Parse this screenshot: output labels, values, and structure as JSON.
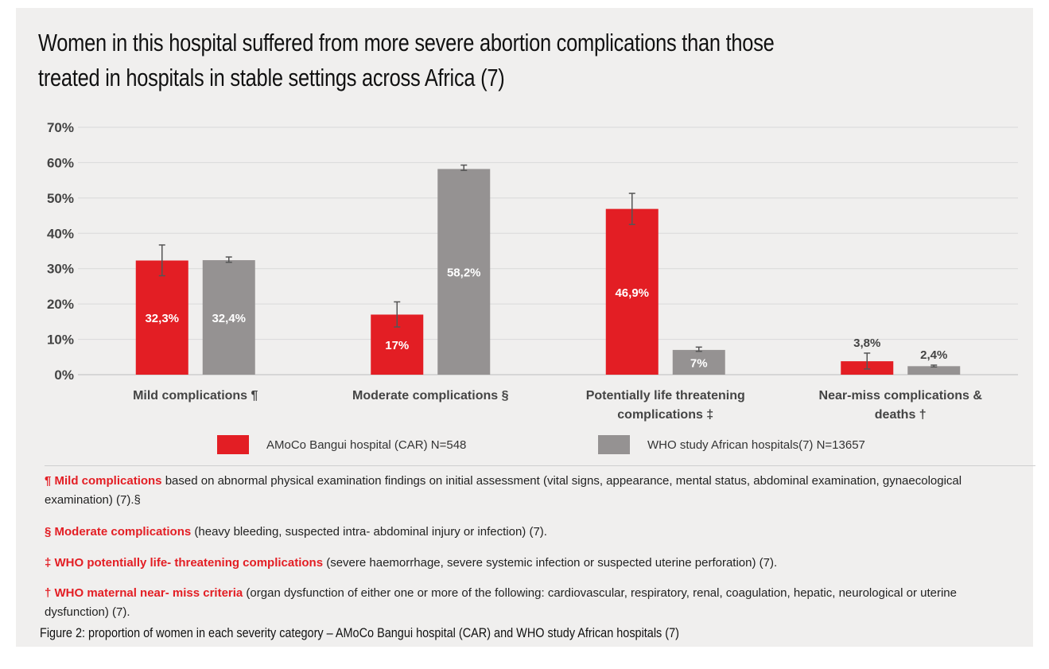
{
  "title": "Women in this hospital suffered from more severe abortion complications than those treated in hospitals in stable settings across Africa (7)",
  "chart_data": {
    "type": "bar",
    "categories": [
      [
        "Mild complications ¶"
      ],
      [
        "Moderate complications §"
      ],
      [
        "Potentially life threatening",
        "complications ‡"
      ],
      [
        "Near-miss complications &",
        "deaths †"
      ]
    ],
    "series": [
      {
        "name": "AMoCo Bangui hospital (CAR) N=548",
        "color": "#e31e24",
        "values": [
          32.3,
          17,
          46.9,
          3.8
        ],
        "labels": [
          "32,3%",
          "17%",
          "46,9%",
          "3,8%"
        ],
        "err_low": [
          28,
          13.5,
          42.5,
          1.6
        ],
        "err_high": [
          36.7,
          20.6,
          51.3,
          6.1
        ]
      },
      {
        "name": "WHO study African hospitals(7) N=13657",
        "color": "#959292",
        "values": [
          32.4,
          58.2,
          7,
          2.4
        ],
        "labels": [
          "32,4%",
          "58,2%",
          "7%",
          "2,4%"
        ],
        "err_low": [
          31.8,
          57.8,
          6.6,
          2.2
        ],
        "err_high": [
          33.3,
          59.3,
          7.8,
          2.7
        ]
      }
    ],
    "yticks": [
      "0%",
      "10%",
      "20%",
      "30%",
      "40%",
      "50%",
      "60%",
      "70%"
    ],
    "ylim": [
      0,
      70
    ],
    "grid": true,
    "legend_position": "bottom"
  },
  "footnotes": [
    {
      "bold": "¶ Mild complications",
      "text": " based on abnormal physical examination findings on initial assessment (vital signs, appearance, mental status, abdominal examination, gynaecological examination) (7).§"
    },
    {
      "bold": "§ Moderate complications",
      "text": " (heavy bleeding, suspected intra- abdominal injury or infection) (7)."
    },
    {
      "bold": "‡ WHO potentially life- threatening complications",
      "text": " (severe haemorrhage, severe systemic infection or suspected uterine perforation) (7)."
    },
    {
      "bold": "† WHO maternal near- miss criteria",
      "text": " (organ dysfunction of either one or more of the following: cardiovascular, respiratory, renal, coagulation, hepatic, neurological or uterine dysfunction) (7)."
    }
  ],
  "caption": "Figure 2: proportion of women in each severity category – AMoCo Bangui hospital (CAR) and WHO study African hospitals (7)"
}
